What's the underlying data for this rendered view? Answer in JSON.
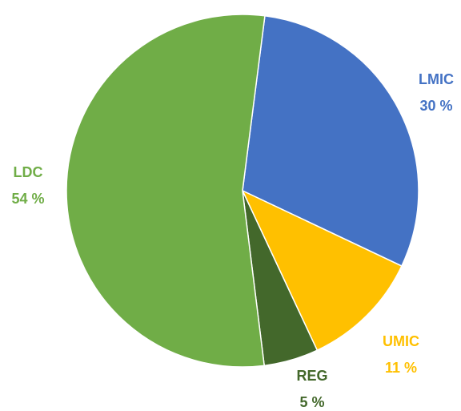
{
  "chart_data": {
    "type": "pie",
    "categories": [
      "LMIC",
      "UMIC",
      "REG",
      "LDC"
    ],
    "values": [
      30,
      11,
      5,
      54
    ],
    "value_labels": [
      "30 %",
      "11 %",
      "5 %",
      "54 %"
    ],
    "colors": [
      "#4472c4",
      "#ffc000",
      "#43682b",
      "#70ad47"
    ]
  }
}
